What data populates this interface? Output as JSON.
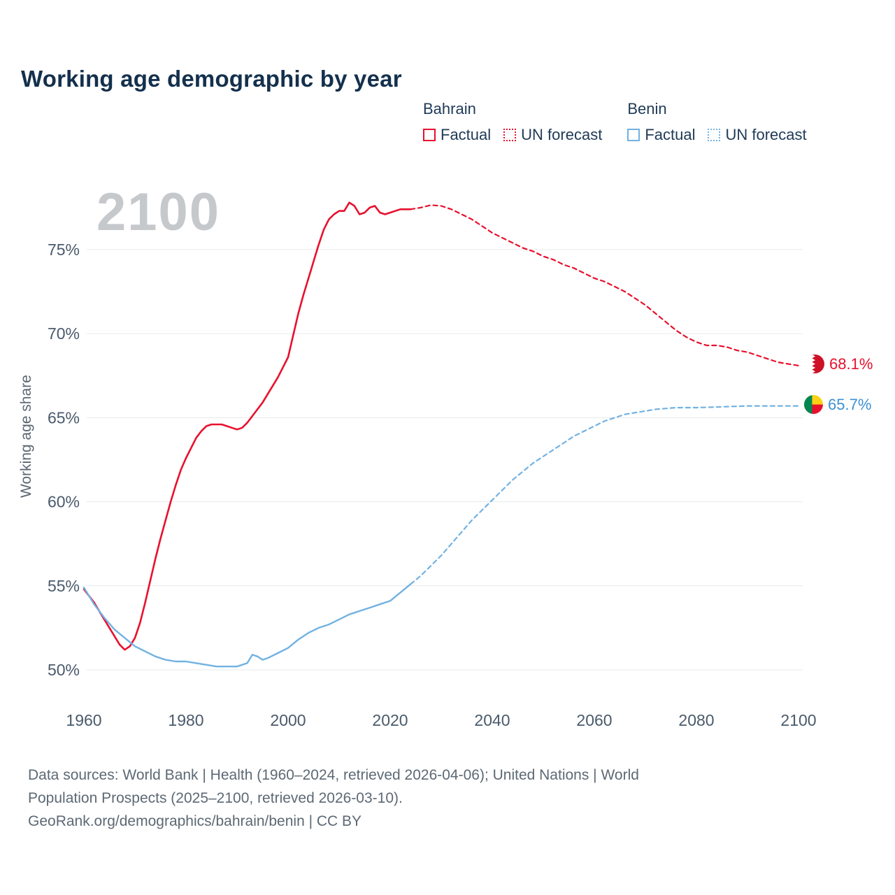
{
  "title": "Working age demographic by year",
  "watermark": "2100",
  "y_axis_label": "Working age share",
  "legend": {
    "groups": [
      {
        "country": "Bahrain",
        "color": "#e8112d",
        "items": [
          {
            "label": "Factual",
            "style": "solid"
          },
          {
            "label": "UN forecast",
            "style": "dotted"
          }
        ]
      },
      {
        "country": "Benin",
        "color": "#72b2e2",
        "items": [
          {
            "label": "Factual",
            "style": "solid"
          },
          {
            "label": "UN forecast",
            "style": "dotted"
          }
        ]
      }
    ]
  },
  "end_labels": [
    {
      "country": "Bahrain",
      "value": "68.1%",
      "color": "#e8112d",
      "icon": "bahrain-flag-icon"
    },
    {
      "country": "Benin",
      "value": "65.7%",
      "color": "#3d90d4",
      "icon": "benin-flag-icon"
    }
  ],
  "footer": {
    "lines": [
      "Data sources: World Bank | Health (1960–2024, retrieved 2026-04-06); United Nations | World",
      "Population Prospects (2025–2100, retrieved 2026-03-10).",
      "GeoRank.org/demographics/bahrain/benin | CC BY"
    ]
  },
  "chart_data": {
    "type": "line",
    "title": "Working age demographic by year",
    "xlabel": "",
    "ylabel": "Working age share",
    "xlim": [
      1960,
      2100
    ],
    "ylim": [
      47.8,
      78.6
    ],
    "x_ticks": [
      1960,
      1980,
      2000,
      2020,
      2040,
      2060,
      2080,
      2100
    ],
    "y_ticks": [
      "50%",
      "55%",
      "60%",
      "65%",
      "70%",
      "75%"
    ],
    "y_tick_values": [
      50,
      55,
      60,
      65,
      70,
      75
    ],
    "grid": "horizontal",
    "legend_position": "top-right",
    "series": [
      {
        "name": "bahrain-factual",
        "country": "Bahrain",
        "kind": "Factual",
        "color": "#e8112d",
        "dashed": false,
        "width": 2.6,
        "points": [
          [
            1960,
            54.8
          ],
          [
            1961,
            54.4
          ],
          [
            1962,
            54.0
          ],
          [
            1963,
            53.5
          ],
          [
            1964,
            53.0
          ],
          [
            1965,
            52.5
          ],
          [
            1966,
            52.0
          ],
          [
            1967,
            51.5
          ],
          [
            1968,
            51.2
          ],
          [
            1969,
            51.4
          ],
          [
            1970,
            51.9
          ],
          [
            1971,
            52.8
          ],
          [
            1972,
            54.0
          ],
          [
            1973,
            55.3
          ],
          [
            1974,
            56.6
          ],
          [
            1975,
            57.8
          ],
          [
            1976,
            58.9
          ],
          [
            1977,
            60.0
          ],
          [
            1978,
            61.0
          ],
          [
            1979,
            61.9
          ],
          [
            1980,
            62.6
          ],
          [
            1981,
            63.2
          ],
          [
            1982,
            63.8
          ],
          [
            1983,
            64.2
          ],
          [
            1984,
            64.5
          ],
          [
            1985,
            64.6
          ],
          [
            1986,
            64.6
          ],
          [
            1987,
            64.6
          ],
          [
            1988,
            64.5
          ],
          [
            1989,
            64.4
          ],
          [
            1990,
            64.3
          ],
          [
            1991,
            64.4
          ],
          [
            1992,
            64.7
          ],
          [
            1993,
            65.1
          ],
          [
            1994,
            65.5
          ],
          [
            1995,
            65.9
          ],
          [
            1996,
            66.4
          ],
          [
            1997,
            66.9
          ],
          [
            1998,
            67.4
          ],
          [
            1999,
            68.0
          ],
          [
            2000,
            68.6
          ],
          [
            2001,
            69.9
          ],
          [
            2002,
            71.2
          ],
          [
            2003,
            72.3
          ],
          [
            2004,
            73.3
          ],
          [
            2005,
            74.3
          ],
          [
            2006,
            75.3
          ],
          [
            2007,
            76.2
          ],
          [
            2008,
            76.8
          ],
          [
            2009,
            77.1
          ],
          [
            2010,
            77.3
          ],
          [
            2011,
            77.3
          ],
          [
            2012,
            77.8
          ],
          [
            2013,
            77.6
          ],
          [
            2014,
            77.1
          ],
          [
            2015,
            77.2
          ],
          [
            2016,
            77.5
          ],
          [
            2017,
            77.6
          ],
          [
            2018,
            77.2
          ],
          [
            2019,
            77.1
          ],
          [
            2020,
            77.2
          ],
          [
            2021,
            77.3
          ],
          [
            2022,
            77.4
          ],
          [
            2023,
            77.4
          ],
          [
            2024,
            77.4
          ]
        ]
      },
      {
        "name": "bahrain-forecast",
        "country": "Bahrain",
        "kind": "UN forecast",
        "color": "#e8112d",
        "dashed": true,
        "width": 2.2,
        "points": [
          [
            2024,
            77.4
          ],
          [
            2026,
            77.5
          ],
          [
            2028,
            77.65
          ],
          [
            2030,
            77.6
          ],
          [
            2032,
            77.4
          ],
          [
            2034,
            77.1
          ],
          [
            2036,
            76.8
          ],
          [
            2038,
            76.4
          ],
          [
            2040,
            76.0
          ],
          [
            2042,
            75.7
          ],
          [
            2044,
            75.4
          ],
          [
            2046,
            75.1
          ],
          [
            2048,
            74.9
          ],
          [
            2050,
            74.6
          ],
          [
            2052,
            74.4
          ],
          [
            2054,
            74.1
          ],
          [
            2056,
            73.9
          ],
          [
            2058,
            73.6
          ],
          [
            2060,
            73.3
          ],
          [
            2062,
            73.1
          ],
          [
            2064,
            72.8
          ],
          [
            2066,
            72.5
          ],
          [
            2068,
            72.1
          ],
          [
            2070,
            71.7
          ],
          [
            2072,
            71.2
          ],
          [
            2074,
            70.7
          ],
          [
            2076,
            70.2
          ],
          [
            2078,
            69.8
          ],
          [
            2080,
            69.5
          ],
          [
            2082,
            69.3
          ],
          [
            2084,
            69.3
          ],
          [
            2086,
            69.2
          ],
          [
            2088,
            69.0
          ],
          [
            2090,
            68.9
          ],
          [
            2092,
            68.7
          ],
          [
            2094,
            68.5
          ],
          [
            2096,
            68.3
          ],
          [
            2098,
            68.2
          ],
          [
            2100,
            68.1
          ]
        ]
      },
      {
        "name": "benin-factual",
        "country": "Benin",
        "kind": "Factual",
        "color": "#72b2e2",
        "dashed": false,
        "width": 2.4,
        "points": [
          [
            1960,
            54.9
          ],
          [
            1962,
            53.9
          ],
          [
            1964,
            53.1
          ],
          [
            1966,
            52.4
          ],
          [
            1968,
            51.9
          ],
          [
            1970,
            51.4
          ],
          [
            1972,
            51.1
          ],
          [
            1974,
            50.8
          ],
          [
            1976,
            50.6
          ],
          [
            1978,
            50.5
          ],
          [
            1980,
            50.5
          ],
          [
            1982,
            50.4
          ],
          [
            1984,
            50.3
          ],
          [
            1986,
            50.2
          ],
          [
            1988,
            50.2
          ],
          [
            1990,
            50.2
          ],
          [
            1992,
            50.4
          ],
          [
            1993,
            50.9
          ],
          [
            1994,
            50.8
          ],
          [
            1995,
            50.6
          ],
          [
            1996,
            50.7
          ],
          [
            1998,
            51.0
          ],
          [
            2000,
            51.3
          ],
          [
            2002,
            51.8
          ],
          [
            2004,
            52.2
          ],
          [
            2006,
            52.5
          ],
          [
            2008,
            52.7
          ],
          [
            2010,
            53.0
          ],
          [
            2012,
            53.3
          ],
          [
            2014,
            53.5
          ],
          [
            2016,
            53.7
          ],
          [
            2018,
            53.9
          ],
          [
            2020,
            54.1
          ],
          [
            2022,
            54.6
          ],
          [
            2024,
            55.1
          ]
        ]
      },
      {
        "name": "benin-forecast",
        "country": "Benin",
        "kind": "UN forecast",
        "color": "#72b2e2",
        "dashed": true,
        "width": 2.2,
        "points": [
          [
            2024,
            55.1
          ],
          [
            2026,
            55.6
          ],
          [
            2028,
            56.2
          ],
          [
            2030,
            56.8
          ],
          [
            2032,
            57.5
          ],
          [
            2034,
            58.2
          ],
          [
            2036,
            58.9
          ],
          [
            2038,
            59.5
          ],
          [
            2040,
            60.1
          ],
          [
            2042,
            60.7
          ],
          [
            2044,
            61.3
          ],
          [
            2046,
            61.8
          ],
          [
            2048,
            62.3
          ],
          [
            2050,
            62.7
          ],
          [
            2052,
            63.1
          ],
          [
            2054,
            63.5
          ],
          [
            2056,
            63.9
          ],
          [
            2058,
            64.2
          ],
          [
            2060,
            64.5
          ],
          [
            2062,
            64.8
          ],
          [
            2064,
            65.0
          ],
          [
            2066,
            65.2
          ],
          [
            2068,
            65.3
          ],
          [
            2070,
            65.4
          ],
          [
            2072,
            65.5
          ],
          [
            2074,
            65.55
          ],
          [
            2076,
            65.6
          ],
          [
            2080,
            65.6
          ],
          [
            2085,
            65.65
          ],
          [
            2090,
            65.7
          ],
          [
            2095,
            65.7
          ],
          [
            2100,
            65.7
          ]
        ]
      }
    ],
    "end_values": {
      "Bahrain": 68.1,
      "Benin": 65.7
    }
  }
}
